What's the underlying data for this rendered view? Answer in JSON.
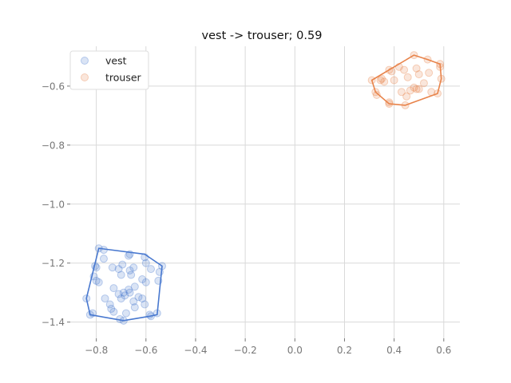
{
  "chart_data": {
    "type": "scatter",
    "title": "vest -> trouser; 0.59",
    "xlabel": "",
    "ylabel": "",
    "xlim": [
      -0.905,
      0.665
    ],
    "ylim": [
      -1.455,
      -0.465
    ],
    "xticks": [
      -0.8,
      -0.6,
      -0.4,
      -0.2,
      0.0,
      0.2,
      0.4,
      0.6
    ],
    "xtick_labels": [
      "−0.8",
      "−0.6",
      "−0.4",
      "−0.2",
      "0.0",
      "0.2",
      "0.4",
      "0.6"
    ],
    "yticks": [
      -1.4,
      -1.2,
      -1.0,
      -0.8,
      -0.6
    ],
    "ytick_labels": [
      "−1.4",
      "−1.2",
      "−1.0",
      "−0.8",
      "−0.6"
    ],
    "grid": true,
    "legend": {
      "placement": "top-left",
      "entries": [
        "vest",
        "trouser"
      ]
    },
    "colors": {
      "vest": "#4878cf",
      "trouser": "#e8834a",
      "grid": "#d9d9d9",
      "tick": "#777777"
    },
    "series": [
      {
        "name": "vest",
        "color": "#4878cf",
        "points": [
          [
            -0.79,
            -1.15
          ],
          [
            -0.77,
            -1.155
          ],
          [
            -0.665,
            -1.17
          ],
          [
            -0.67,
            -1.175
          ],
          [
            -0.605,
            -1.18
          ],
          [
            -0.77,
            -1.185
          ],
          [
            -0.695,
            -1.205
          ],
          [
            -0.6,
            -1.2
          ],
          [
            -0.735,
            -1.215
          ],
          [
            -0.71,
            -1.22
          ],
          [
            -0.65,
            -1.215
          ],
          [
            -0.58,
            -1.22
          ],
          [
            -0.535,
            -1.21
          ],
          [
            -0.805,
            -1.21
          ],
          [
            -0.8,
            -1.215
          ],
          [
            -0.665,
            -1.225
          ],
          [
            -0.7,
            -1.24
          ],
          [
            -0.81,
            -1.245
          ],
          [
            -0.66,
            -1.24
          ],
          [
            -0.545,
            -1.23
          ],
          [
            -0.8,
            -1.26
          ],
          [
            -0.79,
            -1.265
          ],
          [
            -0.615,
            -1.255
          ],
          [
            -0.6,
            -1.265
          ],
          [
            -0.645,
            -1.28
          ],
          [
            -0.55,
            -1.26
          ],
          [
            -0.73,
            -1.285
          ],
          [
            -0.69,
            -1.3
          ],
          [
            -0.71,
            -1.305
          ],
          [
            -0.67,
            -1.29
          ],
          [
            -0.665,
            -1.3
          ],
          [
            -0.685,
            -1.31
          ],
          [
            -0.63,
            -1.315
          ],
          [
            -0.615,
            -1.32
          ],
          [
            -0.7,
            -1.32
          ],
          [
            -0.765,
            -1.32
          ],
          [
            -0.745,
            -1.34
          ],
          [
            -0.645,
            -1.35
          ],
          [
            -0.605,
            -1.34
          ],
          [
            -0.65,
            -1.33
          ],
          [
            -0.74,
            -1.355
          ],
          [
            -0.73,
            -1.365
          ],
          [
            -0.68,
            -1.37
          ],
          [
            -0.585,
            -1.375
          ],
          [
            -0.555,
            -1.37
          ],
          [
            -0.58,
            -1.38
          ],
          [
            -0.825,
            -1.375
          ],
          [
            -0.815,
            -1.37
          ],
          [
            -0.705,
            -1.39
          ],
          [
            -0.69,
            -1.395
          ],
          [
            -0.84,
            -1.32
          ]
        ],
        "hull": [
          [
            -0.79,
            -1.15
          ],
          [
            -0.605,
            -1.17
          ],
          [
            -0.535,
            -1.21
          ],
          [
            -0.555,
            -1.375
          ],
          [
            -0.585,
            -1.38
          ],
          [
            -0.69,
            -1.395
          ],
          [
            -0.825,
            -1.375
          ],
          [
            -0.84,
            -1.32
          ]
        ]
      },
      {
        "name": "trouser",
        "color": "#e8834a",
        "points": [
          [
            0.48,
            -0.495
          ],
          [
            0.535,
            -0.51
          ],
          [
            0.585,
            -0.525
          ],
          [
            0.42,
            -0.535
          ],
          [
            0.49,
            -0.54
          ],
          [
            0.44,
            -0.545
          ],
          [
            0.38,
            -0.545
          ],
          [
            0.54,
            -0.555
          ],
          [
            0.5,
            -0.56
          ],
          [
            0.455,
            -0.57
          ],
          [
            0.35,
            -0.575
          ],
          [
            0.345,
            -0.58
          ],
          [
            0.31,
            -0.58
          ],
          [
            0.59,
            -0.575
          ],
          [
            0.52,
            -0.59
          ],
          [
            0.4,
            -0.58
          ],
          [
            0.48,
            -0.605
          ],
          [
            0.49,
            -0.61
          ],
          [
            0.5,
            -0.61
          ],
          [
            0.465,
            -0.615
          ],
          [
            0.43,
            -0.62
          ],
          [
            0.325,
            -0.62
          ],
          [
            0.33,
            -0.63
          ],
          [
            0.55,
            -0.62
          ],
          [
            0.575,
            -0.625
          ],
          [
            0.45,
            -0.635
          ],
          [
            0.38,
            -0.655
          ],
          [
            0.38,
            -0.66
          ],
          [
            0.445,
            -0.665
          ],
          [
            0.39,
            -0.55
          ],
          [
            0.36,
            -0.585
          ],
          [
            0.585,
            -0.535
          ]
        ],
        "hull": [
          [
            0.31,
            -0.58
          ],
          [
            0.38,
            -0.545
          ],
          [
            0.48,
            -0.495
          ],
          [
            0.535,
            -0.51
          ],
          [
            0.585,
            -0.525
          ],
          [
            0.59,
            -0.575
          ],
          [
            0.575,
            -0.625
          ],
          [
            0.445,
            -0.665
          ],
          [
            0.38,
            -0.66
          ],
          [
            0.325,
            -0.62
          ]
        ]
      }
    ]
  }
}
